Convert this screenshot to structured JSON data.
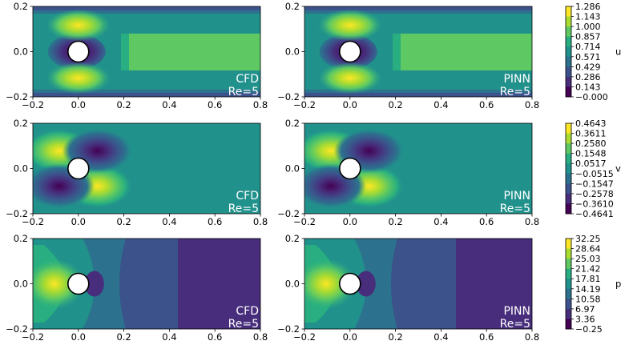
{
  "palette": [
    "#440154",
    "#472d7b",
    "#3b528b",
    "#2c728e",
    "#21918c",
    "#28ae80",
    "#5ec962",
    "#addc30",
    "#fde725"
  ],
  "chart_data": [
    {
      "type": "heatmap",
      "field": "u",
      "case": "CFD",
      "re_label": "Re=5",
      "xlim": [
        -0.2,
        0.8
      ],
      "ylim": [
        -0.2,
        0.2
      ],
      "xticks": [
        "−0.2",
        "0.0",
        "0.2",
        "0.4",
        "0.6",
        "0.8"
      ],
      "yticks": [
        "0.2",
        "0.0",
        "−0.2"
      ]
    },
    {
      "type": "heatmap",
      "field": "u",
      "case": "PINN",
      "re_label": "Re=5",
      "xlim": [
        -0.2,
        0.8
      ],
      "ylim": [
        -0.2,
        0.2
      ],
      "xticks": [
        "−0.2",
        "0.0",
        "0.2",
        "0.4",
        "0.6",
        "0.8"
      ],
      "yticks": [
        "0.2",
        "0.0",
        "−0.2"
      ]
    },
    {
      "type": "heatmap",
      "field": "v",
      "case": "CFD",
      "re_label": "Re=5",
      "xlim": [
        -0.2,
        0.8
      ],
      "ylim": [
        -0.2,
        0.2
      ],
      "xticks": [
        "−0.2",
        "0.0",
        "0.2",
        "0.4",
        "0.6",
        "0.8"
      ],
      "yticks": [
        "0.2",
        "0.0",
        "−0.2"
      ]
    },
    {
      "type": "heatmap",
      "field": "v",
      "case": "PINN",
      "re_label": "Re=5",
      "xlim": [
        -0.2,
        0.8
      ],
      "ylim": [
        -0.2,
        0.2
      ],
      "xticks": [
        "−0.2",
        "0.0",
        "0.2",
        "0.4",
        "0.6",
        "0.8"
      ],
      "yticks": [
        "0.2",
        "0.0",
        "−0.2"
      ]
    },
    {
      "type": "heatmap",
      "field": "p",
      "case": "CFD",
      "re_label": "Re=5",
      "xlim": [
        -0.2,
        0.8
      ],
      "ylim": [
        -0.2,
        0.2
      ],
      "xticks": [
        "−0.2",
        "0.0",
        "0.2",
        "0.4",
        "0.6",
        "0.8"
      ],
      "yticks": [
        "0.2",
        "0.0",
        "−0.2"
      ]
    },
    {
      "type": "heatmap",
      "field": "p",
      "case": "PINN",
      "re_label": "Re=5",
      "xlim": [
        -0.2,
        0.8
      ],
      "ylim": [
        -0.2,
        0.2
      ],
      "xticks": [
        "−0.2",
        "0.0",
        "0.2",
        "0.4",
        "0.6",
        "0.8"
      ],
      "yticks": [
        "0.2",
        "0.0",
        "−0.2"
      ]
    }
  ],
  "colorbars": [
    {
      "label": "u",
      "ticks": [
        "1.286",
        "1.143",
        "1.000",
        "0.857",
        "0.714",
        "0.571",
        "0.429",
        "0.286",
        "0.143",
        "−0.000"
      ]
    },
    {
      "label": "v",
      "ticks": [
        "0.4643",
        "0.3611",
        "0.2580",
        "0.1548",
        "0.0517",
        "−0.0515",
        "−0.1547",
        "−0.2578",
        "−0.3610",
        "−0.4641"
      ]
    },
    {
      "label": "p",
      "ticks": [
        "32.25",
        "28.64",
        "25.03",
        "21.42",
        "17.81",
        "14.19",
        "10.58",
        "6.97",
        "3.36",
        "−0.25"
      ]
    }
  ]
}
